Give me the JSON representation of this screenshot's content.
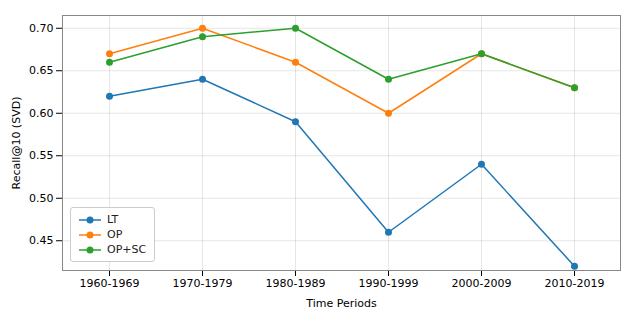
{
  "chart_data": {
    "type": "line",
    "categories": [
      "1960-1969",
      "1970-1979",
      "1980-1989",
      "1990-1999",
      "2000-2009",
      "2010-2019"
    ],
    "series": [
      {
        "name": "LT",
        "color": "#1f77b4",
        "values": [
          0.62,
          0.64,
          0.59,
          0.46,
          0.54,
          0.42
        ]
      },
      {
        "name": "OP",
        "color": "#ff7f0e",
        "values": [
          0.67,
          0.7,
          0.66,
          0.6,
          0.67,
          0.63
        ]
      },
      {
        "name": "OP+SC",
        "color": "#2ca02c",
        "values": [
          0.66,
          0.69,
          0.7,
          0.64,
          0.67,
          0.63
        ]
      }
    ],
    "xlabel": "Time Periods",
    "ylabel": "Recall@10 (SVD)",
    "ylim": [
      0.415,
      0.715
    ],
    "yticks": [
      0.45,
      {
        "value": 0.5,
        "label": "0.50"
      },
      0.55,
      {
        "value": 0.6,
        "label": "0.60"
      },
      0.65,
      {
        "value": 0.7,
        "label": "0.70"
      }
    ],
    "marker": "circle",
    "grid": true,
    "legend": "lower left"
  }
}
